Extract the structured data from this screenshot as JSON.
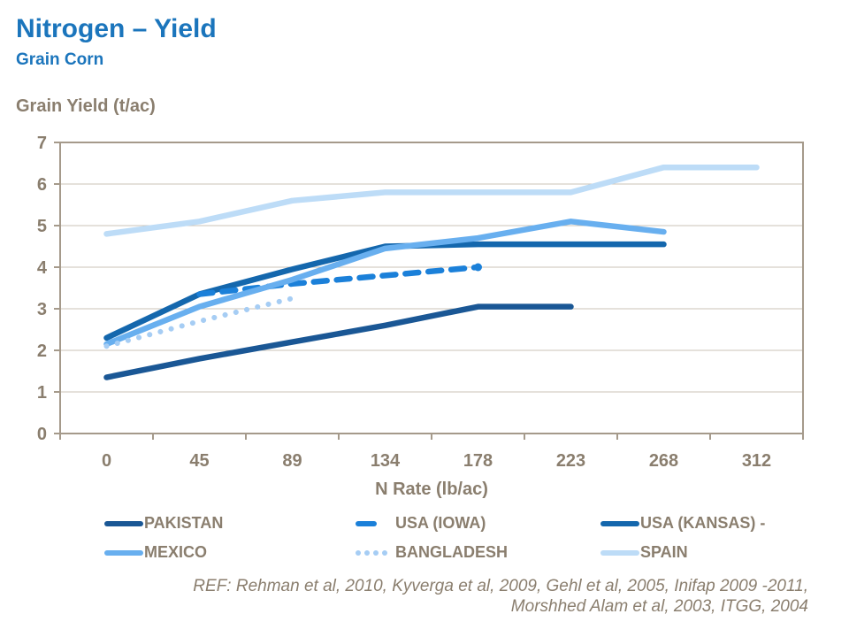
{
  "header": {
    "title": "Nitrogen – Yield",
    "subtitle": "Grain Corn"
  },
  "colors": {
    "title_blue": "#1B75BC",
    "text_brown": "#8A7E6E",
    "axis_line": "#A59A8B",
    "gridline": "#CBC3B7",
    "background": "#FFFFFF"
  },
  "chart_data": {
    "type": "line",
    "title": "",
    "xlabel": "N Rate (lb/ac)",
    "ylabel": "Grain Yield (t/ac)",
    "x_categories": [
      "0",
      "45",
      "89",
      "134",
      "178",
      "223",
      "268",
      "312"
    ],
    "y_ticks": [
      0,
      1,
      2,
      3,
      4,
      5,
      6,
      7
    ],
    "ylim": [
      0,
      7
    ],
    "grid": "horizontal",
    "legend_position": "bottom",
    "series": [
      {
        "name": "PAKISTAN",
        "color": "#1A5795",
        "style": "solid",
        "start_index": 0,
        "values": [
          1.35,
          1.8,
          2.2,
          2.6,
          3.05,
          3.05
        ]
      },
      {
        "name": "USA (KANSAS) -",
        "color": "#1467AD",
        "style": "solid",
        "start_index": 0,
        "values": [
          2.3,
          3.35,
          3.95,
          4.5,
          4.55,
          4.55,
          4.55
        ]
      },
      {
        "name": "USA (IOWA)",
        "color": "#1B80D9",
        "style": "dashed",
        "start_index": 1,
        "values": [
          3.35,
          3.6,
          3.8,
          4.0
        ],
        "end_marker": true
      },
      {
        "name": "MEXICO",
        "color": "#68AFEF",
        "style": "solid",
        "start_index": 0,
        "values": [
          2.15,
          3.05,
          3.7,
          4.45,
          4.7,
          5.1,
          4.85
        ]
      },
      {
        "name": "BANGLADESH",
        "color": "#A6CDF4",
        "style": "dotted",
        "start_index": 0,
        "values": [
          2.1,
          2.7,
          3.25
        ]
      },
      {
        "name": "SPAIN",
        "color": "#BDDCF7",
        "style": "solid",
        "start_index": 0,
        "values": [
          4.8,
          5.1,
          5.6,
          5.8,
          5.8,
          5.8,
          6.4,
          6.4
        ]
      }
    ]
  },
  "legend": {
    "order": [
      0,
      2,
      1,
      3,
      4,
      5
    ]
  },
  "footer": {
    "ref_line1": "REF: Rehman et al, 2010, Kyverga et al, 2009, Gehl et al, 2005, Inifap 2009 -2011,",
    "ref_line2": "Morshhed Alam et al, 2003, ITGG, 2004"
  }
}
